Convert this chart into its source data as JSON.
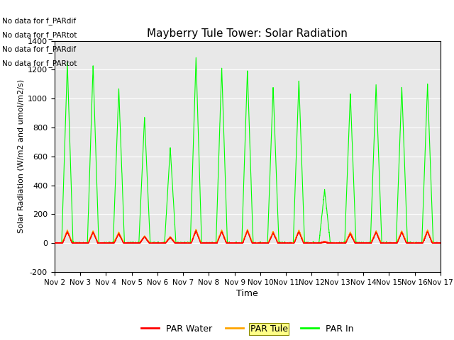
{
  "title": "Mayberry Tule Tower: Solar Radiation",
  "xlabel": "Time",
  "ylabel": "Solar Radiation (W/m2 and umol/m2/s)",
  "ylim": [
    -200,
    1400
  ],
  "bg_color": "#e8e8e8",
  "line_colors": {
    "par_water": "#ff0000",
    "par_tule": "#ffa500",
    "par_in": "#00ff00"
  },
  "legend_labels": [
    "PAR Water",
    "PAR Tule",
    "PAR In"
  ],
  "no_data_texts": [
    "No data for f_PARdif",
    "No data for f_PARtot",
    "No data for f_PARdif",
    "No data for f_PARtot"
  ],
  "xtick_labels": [
    "Nov 2",
    "Nov 3",
    "Nov 4",
    "Nov 5",
    "Nov 6",
    "Nov 7",
    "Nov 8",
    "Nov 9",
    "Nov 10",
    "Nov 11",
    "Nov 12",
    "Nov 13",
    "Nov 14",
    "Nov 15",
    "Nov 16",
    "Nov 17"
  ],
  "ytick_values": [
    -200,
    0,
    200,
    400,
    600,
    800,
    1000,
    1200,
    1400
  ],
  "par_in_peaks": [
    1250,
    1230,
    1070,
    870,
    660,
    1290,
    1220,
    1200,
    1085,
    1130,
    370,
    1035,
    1100,
    1080,
    1100
  ],
  "par_tule_peaks": [
    90,
    85,
    75,
    50,
    45,
    95,
    90,
    95,
    80,
    90,
    10,
    75,
    85,
    85,
    90
  ],
  "par_water_peaks": [
    80,
    75,
    65,
    45,
    40,
    85,
    80,
    85,
    70,
    80,
    8,
    65,
    75,
    75,
    80
  ],
  "n_days": 15,
  "pts_per_day": 288
}
